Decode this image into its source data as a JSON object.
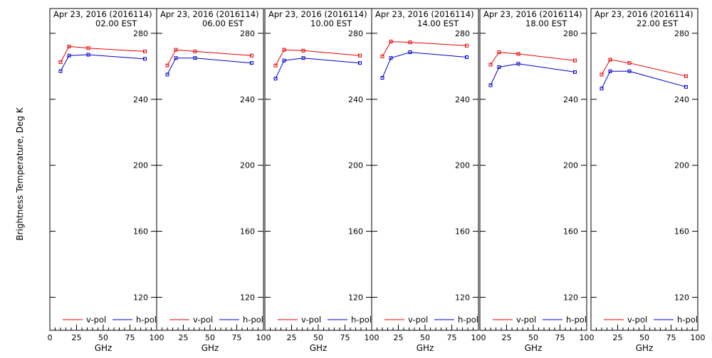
{
  "figure": {
    "ylabel": "Brightness Temperature, Deg K"
  },
  "chart_data": [
    {
      "type": "line",
      "title": "Apr 23, 2016 (2016114)",
      "subtitle": "02.00 EST",
      "xlabel": "GHz",
      "xlim": [
        0,
        100
      ],
      "ylim": [
        100,
        295
      ],
      "xticks": [
        0,
        25,
        50,
        75,
        100
      ],
      "xtick_labels": [
        "0",
        "25",
        "50",
        "75",
        "100"
      ],
      "yticks": [
        120,
        160,
        200,
        240,
        280
      ],
      "ytick_labels": [
        "120",
        "160",
        "200",
        "240",
        "280"
      ],
      "legend_position": "bottom",
      "series": [
        {
          "name": "v-pol",
          "color": "#e60000",
          "x": [
            10,
            18,
            36,
            89
          ],
          "y": [
            262.5,
            272,
            271,
            269
          ]
        },
        {
          "name": "h-pol",
          "color": "#0000d0",
          "x": [
            10,
            18,
            36,
            89
          ],
          "y": [
            257,
            266.5,
            267,
            264.5
          ]
        }
      ]
    },
    {
      "type": "line",
      "title": "Apr 23, 2016 (2016114)",
      "subtitle": "06.00 EST",
      "xlabel": "GHz",
      "xlim": [
        0,
        100
      ],
      "ylim": [
        100,
        295
      ],
      "xticks": [
        0,
        25,
        50,
        75,
        100
      ],
      "xtick_labels": [
        "0",
        "25",
        "50",
        "75",
        "100"
      ],
      "yticks": [
        120,
        160,
        200,
        240,
        280
      ],
      "ytick_labels": [
        "120",
        "160",
        "200",
        "240",
        "280"
      ],
      "legend_position": "bottom",
      "series": [
        {
          "name": "v-pol",
          "color": "#e60000",
          "x": [
            10,
            18,
            36,
            89
          ],
          "y": [
            260.5,
            270,
            269,
            266.5
          ]
        },
        {
          "name": "h-pol",
          "color": "#0000d0",
          "x": [
            10,
            18,
            36,
            89
          ],
          "y": [
            255,
            265,
            265,
            262
          ]
        }
      ]
    },
    {
      "type": "line",
      "title": "Apr 23, 2016 (2016114)",
      "subtitle": "10.00 EST",
      "xlabel": "GHz",
      "xlim": [
        0,
        100
      ],
      "ylim": [
        100,
        295
      ],
      "xticks": [
        0,
        25,
        50,
        75,
        100
      ],
      "xtick_labels": [
        "0",
        "25",
        "50",
        "75",
        "100"
      ],
      "yticks": [
        120,
        160,
        200,
        240,
        280
      ],
      "ytick_labels": [
        "120",
        "160",
        "200",
        "240",
        "280"
      ],
      "legend_position": "bottom",
      "series": [
        {
          "name": "v-pol",
          "color": "#e60000",
          "x": [
            10,
            18,
            36,
            89
          ],
          "y": [
            260.5,
            270,
            269.5,
            266.5
          ]
        },
        {
          "name": "h-pol",
          "color": "#0000d0",
          "x": [
            10,
            18,
            36,
            89
          ],
          "y": [
            252.5,
            263.5,
            265,
            262
          ]
        }
      ]
    },
    {
      "type": "line",
      "title": "Apr 23, 2016 (2016114)",
      "subtitle": "14.00 EST",
      "xlabel": "GHz",
      "xlim": [
        0,
        100
      ],
      "ylim": [
        100,
        295
      ],
      "xticks": [
        0,
        25,
        50,
        75,
        100
      ],
      "xtick_labels": [
        "0",
        "25",
        "50",
        "75",
        "100"
      ],
      "yticks": [
        120,
        160,
        200,
        240,
        280
      ],
      "ytick_labels": [
        "120",
        "160",
        "200",
        "240",
        "280"
      ],
      "legend_position": "bottom",
      "series": [
        {
          "name": "v-pol",
          "color": "#e60000",
          "x": [
            10,
            18,
            36,
            89
          ],
          "y": [
            266,
            275,
            274.5,
            272.5
          ]
        },
        {
          "name": "h-pol",
          "color": "#0000d0",
          "x": [
            10,
            18,
            36,
            89
          ],
          "y": [
            253,
            265,
            268.5,
            265.5
          ]
        }
      ]
    },
    {
      "type": "line",
      "title": "Apr 23, 2016 (2016114)",
      "subtitle": "18.00 EST",
      "xlabel": "GHz",
      "xlim": [
        0,
        100
      ],
      "ylim": [
        100,
        295
      ],
      "xticks": [
        0,
        25,
        50,
        75,
        100
      ],
      "xtick_labels": [
        "0",
        "25",
        "50",
        "75",
        "100"
      ],
      "yticks": [
        120,
        160,
        200,
        240,
        280
      ],
      "ytick_labels": [
        "120",
        "160",
        "200",
        "240",
        "280"
      ],
      "legend_position": "bottom",
      "series": [
        {
          "name": "v-pol",
          "color": "#e60000",
          "x": [
            10,
            18,
            36,
            89
          ],
          "y": [
            261,
            268.5,
            267.5,
            263.5
          ]
        },
        {
          "name": "h-pol",
          "color": "#0000d0",
          "x": [
            10,
            18,
            36,
            89
          ],
          "y": [
            248.5,
            259.5,
            261.5,
            256.5
          ]
        }
      ]
    },
    {
      "type": "line",
      "title": "Apr 23, 2016 (2016114)",
      "subtitle": "22.00 EST",
      "xlabel": "GHz",
      "xlim": [
        0,
        100
      ],
      "ylim": [
        100,
        295
      ],
      "xticks": [
        0,
        25,
        50,
        75,
        100
      ],
      "xtick_labels": [
        "0",
        "25",
        "50",
        "75",
        "100"
      ],
      "yticks": [
        120,
        160,
        200,
        240,
        280
      ],
      "ytick_labels": [
        "120",
        "160",
        "200",
        "240",
        "280"
      ],
      "legend_position": "bottom",
      "series": [
        {
          "name": "v-pol",
          "color": "#e60000",
          "x": [
            10,
            18,
            36,
            89
          ],
          "y": [
            255,
            264,
            262,
            254
          ]
        },
        {
          "name": "h-pol",
          "color": "#0000d0",
          "x": [
            10,
            18,
            36,
            89
          ],
          "y": [
            246.5,
            257,
            257,
            247.5
          ]
        }
      ]
    }
  ]
}
